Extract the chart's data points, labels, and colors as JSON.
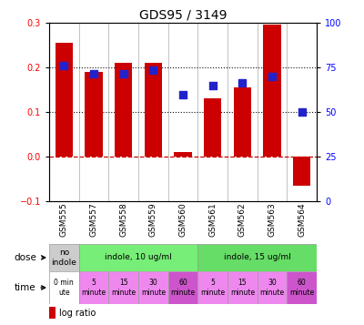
{
  "title": "GDS95 / 3149",
  "samples": [
    "GSM555",
    "GSM557",
    "GSM558",
    "GSM559",
    "GSM560",
    "GSM561",
    "GSM562",
    "GSM563",
    "GSM564"
  ],
  "log_ratio": [
    0.255,
    0.19,
    0.21,
    0.21,
    0.01,
    0.13,
    0.155,
    0.295,
    -0.065
  ],
  "percentile_rank": [
    0.205,
    0.185,
    0.185,
    0.195,
    0.14,
    0.16,
    0.165,
    0.18,
    0.1
  ],
  "ylim_left": [
    -0.1,
    0.3
  ],
  "ylim_right": [
    0,
    100
  ],
  "yticks_left": [
    -0.1,
    0.0,
    0.1,
    0.2,
    0.3
  ],
  "yticks_right": [
    0,
    25,
    50,
    75,
    100
  ],
  "bar_color": "#cc0000",
  "dot_color": "#2222cc",
  "hline_color": "#cc0000",
  "dotted_line_color": "#111111",
  "dose_labels": [
    "no\nindole",
    "indole, 10 ug/ml",
    "indole, 15 ug/ml"
  ],
  "dose_boundaries": [
    0,
    1,
    5,
    9
  ],
  "dose_colors": [
    "#cccccc",
    "#77ee77",
    "#66dd66"
  ],
  "time_labels": [
    "0 min\nute",
    "5\nminute",
    "15\nminute",
    "30\nminute",
    "60\nminute",
    "5\nminute",
    "15\nminute",
    "30\nminute",
    "60\nminute"
  ],
  "time_colors": [
    "#ffffff",
    "#ee88ee",
    "#ee88ee",
    "#ee88ee",
    "#cc55cc",
    "#ee88ee",
    "#ee88ee",
    "#ee88ee",
    "#cc55cc"
  ],
  "legend_bar_color": "#cc0000",
  "legend_dot_color": "#2222cc"
}
